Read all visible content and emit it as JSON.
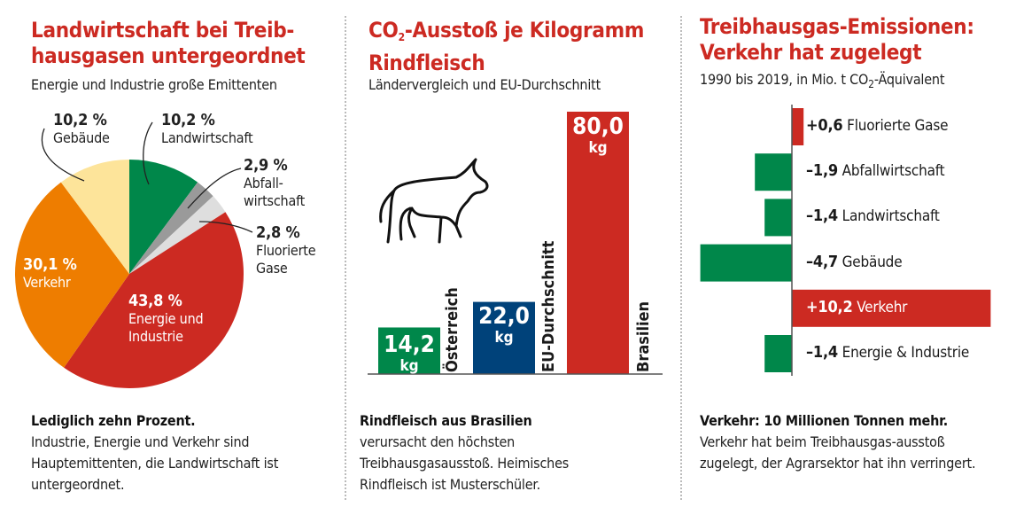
{
  "panel1": {
    "title_line1": "Landwirtschaft bei Treib-",
    "title_line2": "hausgasen untergeordnet",
    "subtitle": "Energie und Industrie große Emittenten",
    "caption_bold": "Lediglich zehn Prozent.",
    "caption": "Industrie, Energie und Verkehr sind Hauptemittenten, die Landwirtschaft ist untergeordnet."
  },
  "panel2": {
    "title_co": "CO",
    "title_sub": "2",
    "title_rest": "-Ausstoß je Kilogramm",
    "title_line2": "Rindfleisch",
    "subtitle": "Ländervergleich und EU-Durchschnitt",
    "caption_bold": "Rindfleisch aus Brasilien",
    "caption": "verursacht den höchsten Treibhausgasausstoß. Heimisches Rindfleisch ist Musterschüler.",
    "icon": "cow-icon"
  },
  "panel3": {
    "title_line1": "Treibhausgas-Emissionen:",
    "title_line2": "Verkehr hat zugelegt",
    "subtitle_pre": "1990 bis 2019, in Mio. t CO",
    "subtitle_sub": "2",
    "subtitle_post": "-Äquivalent",
    "caption_bold": "Verkehr: 10 Millionen Tonnen mehr.",
    "caption": "Verkehr hat beim Treibhausgas-ausstoß zugelegt, der Agrarsektor hat ihn verringert."
  },
  "chart_data": [
    {
      "type": "pie",
      "title": "Landwirtschaft bei Treibhausgasen untergeordnet",
      "unit": "%",
      "slices": [
        {
          "label": "Landwirtschaft",
          "value": 10.2,
          "value_label": "10,2 %",
          "color": "#00874a"
        },
        {
          "label": "Abfallwirtschaft",
          "label_line1": "Abfall-",
          "label_line2": "wirtschaft",
          "value": 2.9,
          "value_label": "2,9 %",
          "color": "#9a9a9a"
        },
        {
          "label": "Fluorierte Gase",
          "label_line1": "Fluorierte",
          "label_line2": "Gase",
          "value": 2.8,
          "value_label": "2,8 %",
          "color": "#dedede"
        },
        {
          "label": "Energie und Industrie",
          "label_line1": "Energie und",
          "label_line2": "Industrie",
          "value": 43.8,
          "value_label": "43,8 %",
          "color": "#cc2a22"
        },
        {
          "label": "Verkehr",
          "value": 30.1,
          "value_label": "30,1 %",
          "color": "#ee7d00"
        },
        {
          "label": "Gebäude",
          "value": 10.2,
          "value_label": "10,2 %",
          "color": "#fde49a"
        }
      ]
    },
    {
      "type": "bar",
      "title": "CO2-Ausstoß je Kilogramm Rindfleisch",
      "unit": "kg",
      "ylim": [
        0,
        80
      ],
      "categories": [
        "Österreich",
        "EU-Durchschnitt",
        "Brasilien"
      ],
      "values": [
        14.2,
        22.0,
        80.0
      ],
      "value_labels": [
        "14,2",
        "22,0",
        "80,0"
      ],
      "colors": [
        "#00874a",
        "#00427a",
        "#cc2a22"
      ]
    },
    {
      "type": "bar",
      "orientation": "horizontal-diverging",
      "title": "Treibhausgas-Emissionen: Verkehr hat zugelegt",
      "unit": "Mio. t CO2-Äquivalent",
      "categories": [
        "Fluorierte Gase",
        "Abfallwirtschaft",
        "Landwirtschaft",
        "Gebäude",
        "Verkehr",
        "Energie & Industrie"
      ],
      "values": [
        0.6,
        -1.9,
        -1.4,
        -4.7,
        10.2,
        -1.4
      ],
      "value_labels": [
        "+0,6",
        "–1,9",
        "–1,4",
        "–4,7",
        "+10,2",
        "–1,4"
      ],
      "positive_color": "#cc2a22",
      "negative_color": "#00874a"
    }
  ]
}
